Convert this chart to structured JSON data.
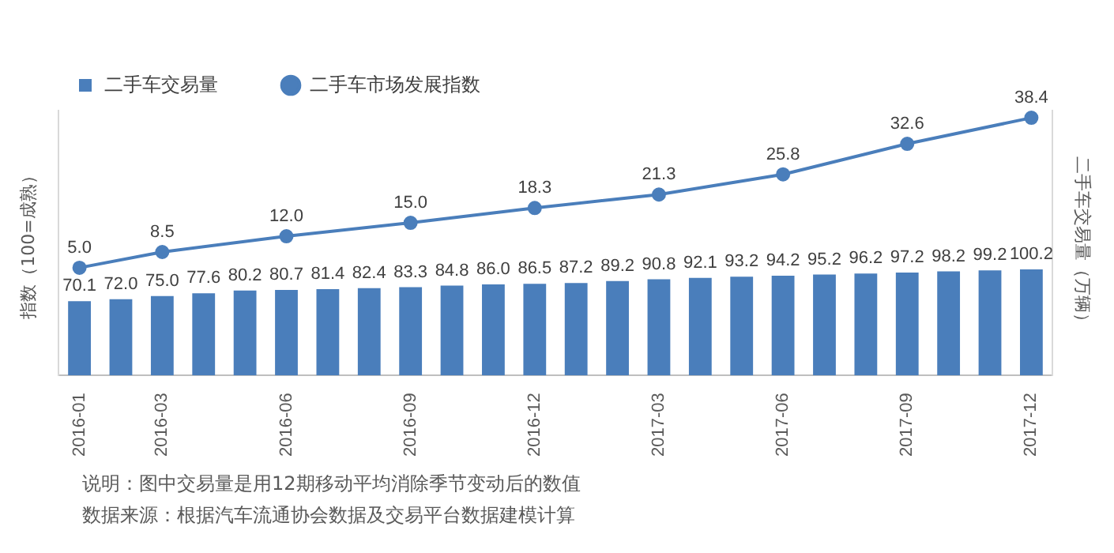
{
  "chart_data": {
    "type": "bar",
    "categories": [
      "2016-01",
      null,
      "2016-03",
      null,
      null,
      "2016-06",
      null,
      null,
      "2016-09",
      null,
      null,
      "2016-12",
      null,
      null,
      "2017-03",
      null,
      null,
      "2017-06",
      null,
      null,
      "2017-09",
      null,
      null,
      "2017-12"
    ],
    "series": [
      {
        "name": "二手车交易量",
        "axis": "y2",
        "color": "#4a7ebb",
        "values": [
          70.1,
          72.0,
          75.0,
          77.6,
          80.2,
          80.7,
          81.4,
          82.4,
          83.3,
          84.8,
          86.0,
          86.5,
          87.2,
          89.2,
          90.8,
          92.1,
          93.2,
          94.2,
          95.2,
          96.2,
          97.2,
          98.2,
          99.2,
          100.2
        ],
        "value_labels": [
          "70.1",
          "72.0",
          "75.0",
          "77.6",
          "80.2",
          "80.7",
          "81.4",
          "82.4",
          "83.3",
          "84.8",
          "86.0",
          "86.5",
          "87.2",
          "89.2",
          "90.8",
          "92.1",
          "93.2",
          "94.2",
          "95.2",
          "96.2",
          "97.2",
          "98.2",
          "99.2",
          "100.2"
        ]
      },
      {
        "name": "二手车市场发展指数",
        "type": "line",
        "axis": "y",
        "color": "#4a7ebb",
        "values": [
          5.0,
          null,
          8.5,
          null,
          null,
          12.0,
          null,
          null,
          15.0,
          null,
          null,
          18.3,
          null,
          null,
          21.3,
          null,
          null,
          25.8,
          null,
          null,
          32.6,
          null,
          null,
          38.4
        ],
        "value_labels": [
          "5.0",
          null,
          "8.5",
          null,
          null,
          "12.0",
          null,
          null,
          "15.0",
          null,
          null,
          "18.3",
          null,
          null,
          "21.3",
          null,
          null,
          "25.8",
          null,
          null,
          "32.6",
          null,
          null,
          "38.4"
        ]
      }
    ],
    "ylabel": "指数（100=成熟）",
    "y2label": "二手车交易量（万辆）",
    "ylim": [
      -19,
      40
    ],
    "y2lim": [
      0,
      250
    ],
    "tick_labels": "x",
    "grid": false,
    "legend": "top left",
    "marker": "circle",
    "line_style": "solid",
    "annotations": [
      "说明：图中交易量是用12期移动平均消除季节变动后的数值",
      "数据来源：根据汽车流通协会数据及交易平台数据建模计算"
    ]
  }
}
